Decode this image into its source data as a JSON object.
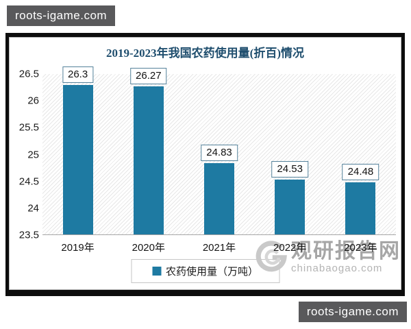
{
  "watermarks": {
    "top_left": "roots-igame.com",
    "bottom_right": "roots-igame.com",
    "site_name": "观研报告网",
    "site_url": "chinabaogao.com"
  },
  "chart_data": {
    "type": "bar",
    "title": "2019-2023年我国农药使用量(折百)情况",
    "categories": [
      "2019年",
      "2020年",
      "2021年",
      "2022年",
      "2023年"
    ],
    "values": [
      26.3,
      26.27,
      24.83,
      24.53,
      24.48
    ],
    "data_labels": [
      "26.3",
      "26.27",
      "24.83",
      "24.53",
      "24.48"
    ],
    "legend": "农药使用量（万吨）",
    "ylim": [
      23.5,
      26.5
    ],
    "yticks": [
      "26.5",
      "26",
      "25.5",
      "25",
      "24.5",
      "24",
      "23.5"
    ],
    "grid": false,
    "legend_position": "bottom-center",
    "background_pattern": "diagonal-hatch",
    "colors": {
      "bar": "#1e7aa2",
      "title": "#1f4e6e",
      "label_box_border": "#54819a",
      "axis_line": "#a6a6a6",
      "frame": "#0d0d0d",
      "watermark_chip_bg": "#59595b",
      "watermark_chip_text": "#ffffff",
      "site_watermark_text": "#a6a6a6"
    }
  }
}
